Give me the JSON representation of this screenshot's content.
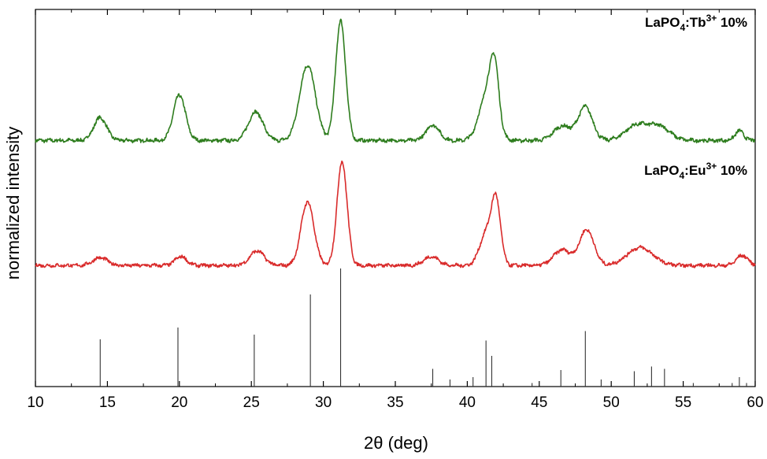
{
  "chart_data": {
    "type": "line",
    "xlabel": "2θ (deg)",
    "ylabel": "normalized intensity",
    "xlim": [
      10,
      60
    ],
    "xticks": [
      10,
      15,
      20,
      25,
      30,
      35,
      40,
      45,
      50,
      55,
      60
    ],
    "grid": false,
    "series": [
      {
        "name": "LaPO4:Tb3+ 10%",
        "label": {
          "formula": "LaPO",
          "sub": "4",
          "dopant": ":Tb",
          "sup": "3+",
          "suffix": " 10%"
        },
        "color": "#2e7d1e",
        "baseline": 0.05,
        "peaks": [
          {
            "x": 14.5,
            "h": 0.19,
            "w": 0.45
          },
          {
            "x": 20.0,
            "h": 0.38,
            "w": 0.42
          },
          {
            "x": 25.3,
            "h": 0.24,
            "w": 0.5
          },
          {
            "x": 28.9,
            "h": 0.63,
            "w": 0.55
          },
          {
            "x": 31.2,
            "h": 1.0,
            "w": 0.35
          },
          {
            "x": 37.6,
            "h": 0.13,
            "w": 0.45
          },
          {
            "x": 41.4,
            "h": 0.4,
            "w": 0.55
          },
          {
            "x": 41.9,
            "h": 0.45,
            "w": 0.3
          },
          {
            "x": 46.6,
            "h": 0.12,
            "w": 0.6
          },
          {
            "x": 48.2,
            "h": 0.28,
            "w": 0.5
          },
          {
            "x": 51.8,
            "h": 0.13,
            "w": 0.8
          },
          {
            "x": 53.4,
            "h": 0.11,
            "w": 0.7
          },
          {
            "x": 58.9,
            "h": 0.08,
            "w": 0.3
          }
        ]
      },
      {
        "name": "LaPO4:Eu3+ 10%",
        "label": {
          "formula": "LaPO",
          "sub": "4",
          "dopant": ":Eu",
          "sup": "3+",
          "suffix": " 10%"
        },
        "color": "#d92b2b",
        "baseline": 0.02,
        "peaks": [
          {
            "x": 14.5,
            "h": 0.07,
            "w": 0.5
          },
          {
            "x": 20.1,
            "h": 0.08,
            "w": 0.4
          },
          {
            "x": 25.4,
            "h": 0.13,
            "w": 0.5
          },
          {
            "x": 28.9,
            "h": 0.57,
            "w": 0.45
          },
          {
            "x": 31.3,
            "h": 0.93,
            "w": 0.35
          },
          {
            "x": 37.5,
            "h": 0.08,
            "w": 0.5
          },
          {
            "x": 41.3,
            "h": 0.28,
            "w": 0.45
          },
          {
            "x": 42.0,
            "h": 0.55,
            "w": 0.32
          },
          {
            "x": 46.6,
            "h": 0.14,
            "w": 0.6
          },
          {
            "x": 48.3,
            "h": 0.32,
            "w": 0.5
          },
          {
            "x": 52.0,
            "h": 0.16,
            "w": 0.9
          },
          {
            "x": 59.1,
            "h": 0.09,
            "w": 0.4
          }
        ]
      }
    ],
    "reference_lines": [
      {
        "x": 14.5,
        "h": 0.4
      },
      {
        "x": 19.9,
        "h": 0.5
      },
      {
        "x": 25.2,
        "h": 0.44
      },
      {
        "x": 29.1,
        "h": 0.78
      },
      {
        "x": 31.2,
        "h": 1.0
      },
      {
        "x": 37.6,
        "h": 0.15
      },
      {
        "x": 38.8,
        "h": 0.06
      },
      {
        "x": 40.4,
        "h": 0.08
      },
      {
        "x": 41.3,
        "h": 0.39
      },
      {
        "x": 41.7,
        "h": 0.26
      },
      {
        "x": 44.5,
        "h": 0.03
      },
      {
        "x": 46.5,
        "h": 0.14
      },
      {
        "x": 48.2,
        "h": 0.47
      },
      {
        "x": 49.3,
        "h": 0.06
      },
      {
        "x": 51.6,
        "h": 0.13
      },
      {
        "x": 52.8,
        "h": 0.17
      },
      {
        "x": 53.7,
        "h": 0.15
      },
      {
        "x": 55.7,
        "h": 0.03
      },
      {
        "x": 58.4,
        "h": 0.03
      },
      {
        "x": 58.9,
        "h": 0.08
      },
      {
        "x": 59.4,
        "h": 0.03
      }
    ]
  }
}
